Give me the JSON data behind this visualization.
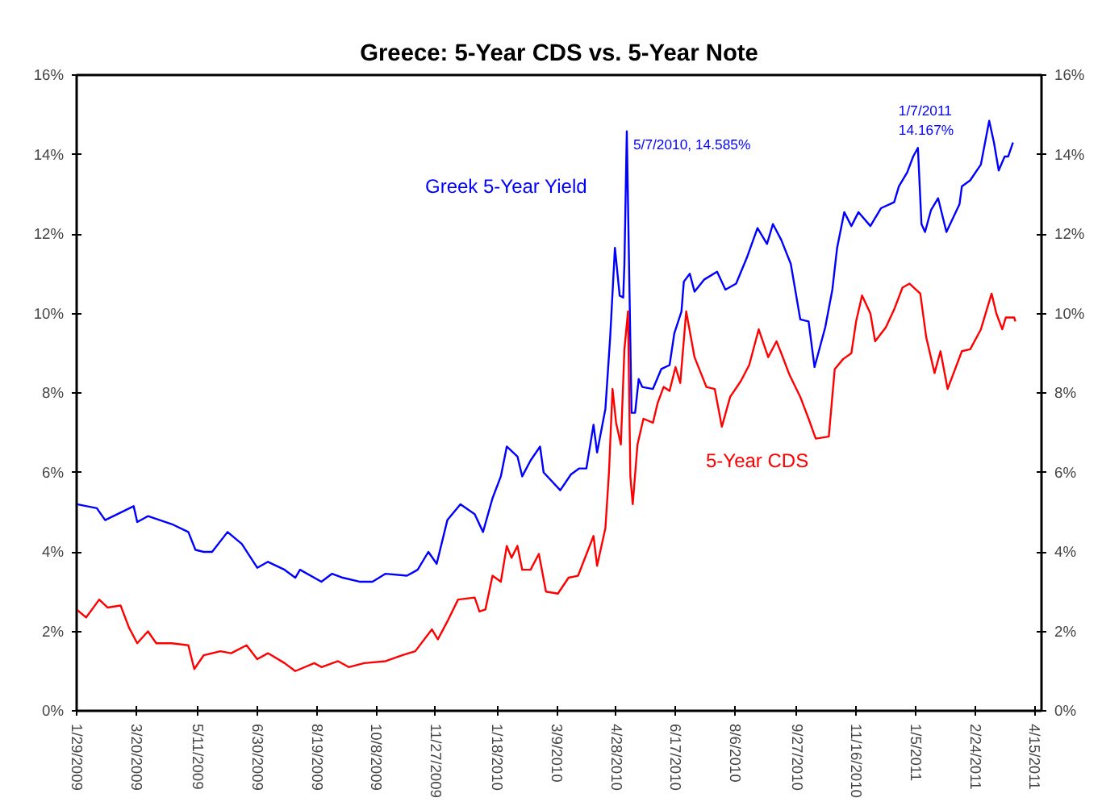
{
  "chart_data": {
    "type": "line",
    "title": "Greece: 5-Year CDS vs. 5-Year Note",
    "series": [
      {
        "name": "Greek 5-Year Yield",
        "color": "#0000ff",
        "x": [
          "2009-01-29",
          "2009-02-15",
          "2009-02-22",
          "2009-03-18",
          "2009-03-21",
          "2009-03-30",
          "2009-04-19",
          "2009-05-03",
          "2009-05-09",
          "2009-05-16",
          "2009-05-23",
          "2009-06-05",
          "2009-06-17",
          "2009-06-30",
          "2009-07-09",
          "2009-07-23",
          "2009-08-01",
          "2009-08-05",
          "2009-08-23",
          "2009-09-01",
          "2009-09-10",
          "2009-09-24",
          "2009-10-05",
          "2009-10-16",
          "2009-11-03",
          "2009-11-12",
          "2009-11-21",
          "2009-11-28",
          "2009-12-07",
          "2009-12-18",
          "2009-12-30",
          "2010-01-06",
          "2010-01-14",
          "2010-01-21",
          "2010-01-26",
          "2010-02-04",
          "2010-02-08",
          "2010-02-15",
          "2010-02-23",
          "2010-02-26",
          "2010-03-12",
          "2010-03-21",
          "2010-03-28",
          "2010-04-03",
          "2010-04-09",
          "2010-04-12",
          "2010-04-19",
          "2010-04-23",
          "2010-04-27",
          "2010-05-01",
          "2010-05-04",
          "2010-05-05",
          "2010-05-07",
          "2010-05-11",
          "2010-05-14",
          "2010-05-17",
          "2010-05-20",
          "2010-05-29",
          "2010-06-05",
          "2010-06-12",
          "2010-06-16",
          "2010-06-22",
          "2010-06-24",
          "2010-06-29",
          "2010-07-03",
          "2010-07-11",
          "2010-07-22",
          "2010-07-29",
          "2010-08-07",
          "2010-08-16",
          "2010-08-25",
          "2010-09-02",
          "2010-09-07",
          "2010-09-14",
          "2010-09-22",
          "2010-09-30",
          "2010-10-07",
          "2010-10-12",
          "2010-10-21",
          "2010-10-27",
          "2010-10-31",
          "2010-11-06",
          "2010-11-12",
          "2010-11-18",
          "2010-11-28",
          "2010-12-07",
          "2010-12-18",
          "2010-12-22",
          "2010-12-29",
          "2011-01-03",
          "2011-01-07",
          "2011-01-10",
          "2011-01-13",
          "2011-01-18",
          "2011-01-24",
          "2011-01-31",
          "2011-02-11",
          "2011-02-13",
          "2011-02-20",
          "2011-03-01",
          "2011-03-08",
          "2011-03-12",
          "2011-03-16",
          "2011-03-21",
          "2011-03-24",
          "2011-03-28"
        ],
        "values": [
          5.2,
          5.1,
          4.8,
          5.15,
          4.75,
          4.9,
          4.7,
          4.5,
          4.05,
          4.0,
          4.0,
          4.5,
          4.2,
          3.6,
          3.75,
          3.55,
          3.35,
          3.55,
          3.25,
          3.45,
          3.35,
          3.25,
          3.25,
          3.45,
          3.4,
          3.55,
          4.0,
          3.7,
          4.8,
          5.2,
          4.95,
          4.5,
          5.35,
          5.9,
          6.65,
          6.4,
          5.9,
          6.3,
          6.65,
          6.0,
          5.55,
          5.95,
          6.1,
          6.1,
          7.2,
          6.5,
          7.6,
          9.4,
          11.65,
          10.45,
          10.4,
          11.25,
          14.585,
          7.5,
          7.5,
          8.35,
          8.15,
          8.1,
          8.6,
          8.7,
          9.5,
          10.05,
          10.8,
          11.0,
          10.55,
          10.85,
          11.05,
          10.6,
          10.75,
          11.4,
          12.15,
          11.75,
          12.25,
          11.85,
          11.25,
          9.85,
          9.8,
          8.65,
          9.65,
          10.6,
          11.65,
          12.55,
          12.2,
          12.55,
          12.2,
          12.65,
          12.8,
          13.2,
          13.55,
          13.95,
          14.167,
          12.25,
          12.05,
          12.6,
          12.9,
          12.05,
          12.75,
          13.2,
          13.35,
          13.75,
          14.85,
          14.3,
          13.6,
          13.95,
          13.95,
          14.3
        ]
      },
      {
        "name": "5-Year CDS",
        "color": "#ff0000",
        "x": [
          "2009-01-29",
          "2009-02-06",
          "2009-02-17",
          "2009-02-24",
          "2009-03-07",
          "2009-03-14",
          "2009-03-21",
          "2009-03-30",
          "2009-04-06",
          "2009-04-19",
          "2009-05-03",
          "2009-05-08",
          "2009-05-16",
          "2009-05-30",
          "2009-06-08",
          "2009-06-21",
          "2009-06-30",
          "2009-07-09",
          "2009-07-23",
          "2009-08-01",
          "2009-08-17",
          "2009-08-23",
          "2009-09-06",
          "2009-09-15",
          "2009-09-28",
          "2009-10-16",
          "2009-10-30",
          "2009-11-10",
          "2009-11-24",
          "2009-11-29",
          "2009-12-07",
          "2009-12-16",
          "2009-12-30",
          "2010-01-03",
          "2010-01-08",
          "2010-01-14",
          "2010-01-21",
          "2010-01-26",
          "2010-01-30",
          "2010-02-04",
          "2010-02-08",
          "2010-02-15",
          "2010-02-22",
          "2010-02-28",
          "2010-03-10",
          "2010-03-19",
          "2010-03-27",
          "2010-04-09",
          "2010-04-12",
          "2010-04-19",
          "2010-04-22",
          "2010-04-25",
          "2010-04-28",
          "2010-05-02",
          "2010-05-05",
          "2010-05-08",
          "2010-05-10",
          "2010-05-12",
          "2010-05-16",
          "2010-05-21",
          "2010-05-29",
          "2010-06-02",
          "2010-06-07",
          "2010-06-12",
          "2010-06-17",
          "2010-06-21",
          "2010-06-26",
          "2010-07-03",
          "2010-07-13",
          "2010-07-20",
          "2010-07-26",
          "2010-08-02",
          "2010-08-11",
          "2010-08-18",
          "2010-08-26",
          "2010-09-03",
          "2010-09-10",
          "2010-09-14",
          "2010-09-21",
          "2010-09-30",
          "2010-10-07",
          "2010-10-13",
          "2010-10-24",
          "2010-10-29",
          "2010-11-05",
          "2010-11-12",
          "2010-11-16",
          "2010-11-21",
          "2010-11-28",
          "2010-12-02",
          "2010-12-11",
          "2010-12-18",
          "2010-12-25",
          "2010-12-31",
          "2011-01-09",
          "2011-01-14",
          "2011-01-21",
          "2011-01-26",
          "2011-02-01",
          "2011-02-13",
          "2011-02-20",
          "2011-03-01",
          "2011-03-10",
          "2011-03-14",
          "2011-03-19",
          "2011-03-22",
          "2011-03-29",
          "2011-03-30"
        ],
        "values": [
          2.55,
          2.35,
          2.8,
          2.6,
          2.65,
          2.1,
          1.7,
          2.0,
          1.7,
          1.7,
          1.65,
          1.05,
          1.4,
          1.5,
          1.45,
          1.65,
          1.3,
          1.45,
          1.2,
          1.0,
          1.2,
          1.1,
          1.25,
          1.1,
          1.2,
          1.25,
          1.4,
          1.5,
          2.05,
          1.8,
          2.25,
          2.8,
          2.85,
          2.5,
          2.55,
          3.4,
          3.25,
          4.15,
          3.85,
          4.15,
          3.55,
          3.55,
          3.95,
          3.0,
          2.95,
          3.35,
          3.4,
          4.4,
          3.65,
          4.6,
          6.0,
          8.1,
          7.25,
          6.7,
          9.1,
          10.05,
          5.9,
          5.2,
          6.7,
          7.35,
          7.25,
          7.75,
          8.15,
          8.05,
          8.65,
          8.25,
          10.05,
          8.9,
          8.15,
          8.1,
          7.15,
          7.9,
          8.3,
          8.7,
          9.6,
          8.9,
          9.3,
          9.0,
          8.45,
          7.9,
          7.35,
          6.85,
          6.9,
          8.6,
          8.85,
          9.0,
          9.8,
          10.45,
          10.0,
          9.3,
          9.65,
          10.1,
          10.65,
          10.75,
          10.5,
          9.4,
          8.5,
          9.05,
          8.1,
          9.05,
          9.1,
          9.6,
          10.5,
          10.0,
          9.6,
          9.9,
          9.9,
          9.8
        ]
      }
    ],
    "annotations": [
      {
        "text": "5/7/2010, 14.585%",
        "x": "2010-05-07",
        "y": 14.585
      },
      {
        "text": "1/7/2011\n14.167%",
        "x": "2011-01-07",
        "y": 14.167
      }
    ],
    "xlim": [
      "2009-01-29",
      "2011-04-21"
    ],
    "xticks": [
      {
        "value": "2009-01-29",
        "label": "1/29/2009"
      },
      {
        "value": "2009-03-20",
        "label": "3/20/2009"
      },
      {
        "value": "2009-05-11",
        "label": "5/11/2009"
      },
      {
        "value": "2009-06-30",
        "label": "6/30/2009"
      },
      {
        "value": "2009-08-19",
        "label": "8/19/2009"
      },
      {
        "value": "2009-10-08",
        "label": "10/8/2009"
      },
      {
        "value": "2009-11-27",
        "label": "11/27/2009"
      },
      {
        "value": "2010-01-18",
        "label": "1/18/2010"
      },
      {
        "value": "2010-03-09",
        "label": "3/9/2010"
      },
      {
        "value": "2010-04-28",
        "label": "4/28/2010"
      },
      {
        "value": "2010-06-17",
        "label": "6/17/2010"
      },
      {
        "value": "2010-08-06",
        "label": "8/6/2010"
      },
      {
        "value": "2010-09-27",
        "label": "9/27/2010"
      },
      {
        "value": "2010-11-16",
        "label": "11/16/2010"
      },
      {
        "value": "2011-01-05",
        "label": "1/5/2011"
      },
      {
        "value": "2011-02-24",
        "label": "2/24/2011"
      },
      {
        "value": "2011-04-15",
        "label": "4/15/2011"
      }
    ],
    "ylim": [
      0,
      16
    ],
    "yticks": [
      {
        "value": 0,
        "label": "0%"
      },
      {
        "value": 2,
        "label": "2%"
      },
      {
        "value": 4,
        "label": "4%"
      },
      {
        "value": 6,
        "label": "6%"
      },
      {
        "value": 8,
        "label": "8%"
      },
      {
        "value": 10,
        "label": "10%"
      },
      {
        "value": 12,
        "label": "12%"
      },
      {
        "value": 14,
        "label": "14%"
      },
      {
        "value": 16,
        "label": "16%"
      }
    ],
    "y2lim": [
      0,
      16
    ],
    "y2ticks": [
      {
        "value": 0,
        "label": "0%"
      },
      {
        "value": 2,
        "label": "2%"
      },
      {
        "value": 4,
        "label": "4%"
      },
      {
        "value": 6,
        "label": "6%"
      },
      {
        "value": 8,
        "label": "8%"
      },
      {
        "value": 10,
        "label": "10%"
      },
      {
        "value": 12,
        "label": "12%"
      },
      {
        "value": 14,
        "label": "14%"
      },
      {
        "value": 16,
        "label": "16%"
      }
    ],
    "grid": false,
    "marker": "none",
    "line_style": "solid"
  }
}
